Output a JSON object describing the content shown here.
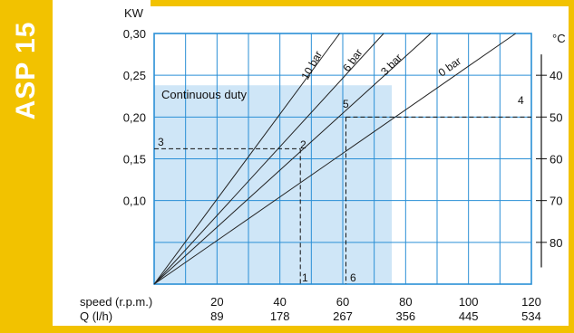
{
  "side_title": "ASP 15",
  "colors": {
    "accent": "#f2c200",
    "grid": "#2a8fd6",
    "continuous_fill": "#cfe6f7",
    "line": "#222222"
  },
  "chart_data": {
    "type": "line",
    "title": "",
    "ylabel": "KW",
    "y2label": "°C",
    "xlabel_speed": "speed (r.p.m.)",
    "xlabel_flow": "Q (l/h)",
    "xlim": [
      0,
      120
    ],
    "ylim": [
      0,
      0.3
    ],
    "x_speed_ticks": [
      "20",
      "40",
      "60",
      "80",
      "100",
      "120"
    ],
    "x_speed_values": [
      20,
      40,
      60,
      80,
      100,
      120
    ],
    "x_flow_ticks": [
      "89",
      "178",
      "267",
      "356",
      "445",
      "534"
    ],
    "y_ticks": [
      "0,30",
      "0,25",
      "0,20",
      "0,15",
      "0,10"
    ],
    "y_tick_values": [
      0.3,
      0.25,
      0.2,
      0.15,
      0.1
    ],
    "temp_ticks": [
      "40",
      "50",
      "60",
      "70",
      "80"
    ],
    "temp_tick_kw": [
      0.25,
      0.2,
      0.15,
      0.1,
      0.05
    ],
    "continuous_duty": {
      "label": "Continuous duty",
      "x_max": 75.6,
      "y_max": 0.238
    },
    "series": [
      {
        "name": "10 bar",
        "x": [
          0,
          59
        ],
        "y": [
          0,
          0.3
        ]
      },
      {
        "name": "6 bar",
        "x": [
          0,
          73
        ],
        "y": [
          0,
          0.3
        ]
      },
      {
        "name": "3 bar",
        "x": [
          0,
          88
        ],
        "y": [
          0,
          0.3
        ]
      },
      {
        "name": "0 bar",
        "x": [
          0,
          115
        ],
        "y": [
          0,
          0.3
        ]
      }
    ],
    "annotations": [
      {
        "label": "1",
        "x": 46.5,
        "y": 0
      },
      {
        "label": "2",
        "x": 46.5,
        "y": 0.162
      },
      {
        "label": "3",
        "x": 0,
        "y": 0.162
      },
      {
        "label": "4",
        "x": 120,
        "y": 0.2
      },
      {
        "label": "5",
        "x": 61,
        "y": 0.2
      },
      {
        "label": "6",
        "x": 61,
        "y": 0
      }
    ]
  }
}
